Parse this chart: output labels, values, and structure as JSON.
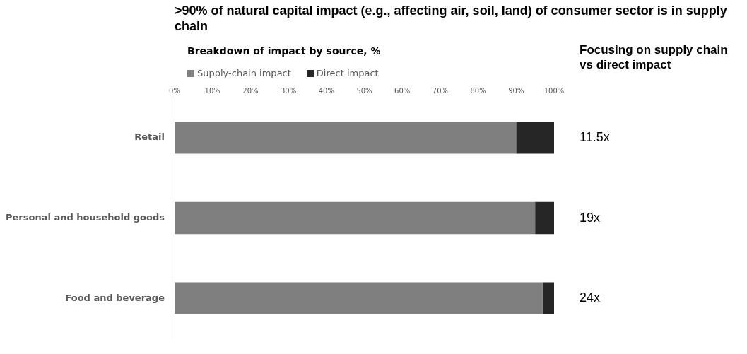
{
  "chart_data": {
    "type": "bar",
    "orientation": "horizontal",
    "stacked": true,
    "title": ">90% of natural capital impact (e.g., affecting air, soil, land) of consumer sector is in supply chain",
    "subtitle": "Breakdown of impact by source, %",
    "categories": [
      "Retail",
      "Personal and household goods",
      "Food and beverage"
    ],
    "series": [
      {
        "name": "Supply-chain impact",
        "color": "#7f7f7f",
        "values": [
          90,
          95,
          97
        ]
      },
      {
        "name": "Direct impact",
        "color": "#262626",
        "values": [
          10,
          5,
          3
        ]
      }
    ],
    "xlim": [
      0,
      100
    ],
    "xticks": [
      {
        "value": 0,
        "label": "0%"
      },
      {
        "value": 10,
        "label": "10%"
      },
      {
        "value": 20,
        "label": "20%"
      },
      {
        "value": 30,
        "label": "30%"
      },
      {
        "value": 40,
        "label": "40%"
      },
      {
        "value": 50,
        "label": "50%"
      },
      {
        "value": 60,
        "label": "60%"
      },
      {
        "value": 70,
        "label": "70%"
      },
      {
        "value": 80,
        "label": "80%"
      },
      {
        "value": 90,
        "label": "90%"
      },
      {
        "value": 100,
        "label": "100%"
      }
    ],
    "grid": false,
    "legend": "top left",
    "annotations": [
      "Focusing on supply chain vs direct impact",
      "11.5x",
      "19x",
      "24x"
    ]
  }
}
